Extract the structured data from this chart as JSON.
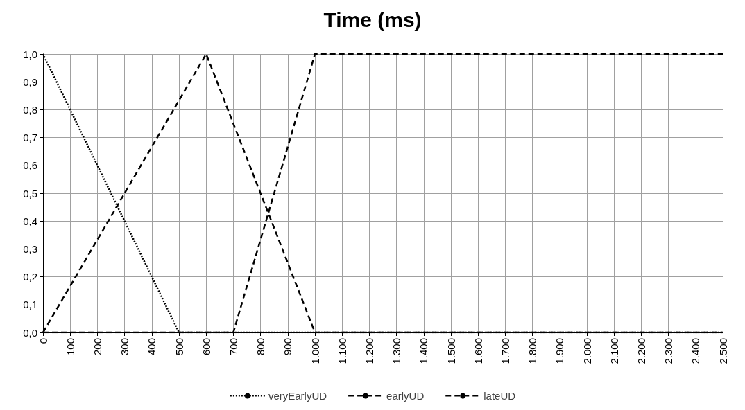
{
  "chart_data": {
    "type": "line",
    "title": "Time (ms)",
    "series": [
      {
        "name": "veryEarlyUD",
        "color": "#000000",
        "line_style": "dotted",
        "x": [
          0,
          500,
          2500
        ],
        "values": [
          1,
          0,
          0
        ]
      },
      {
        "name": "earlyUD",
        "color": "#000000",
        "line_style": "dashed",
        "x": [
          0,
          600,
          1000,
          2500
        ],
        "values": [
          0,
          1,
          0,
          0
        ]
      },
      {
        "name": "lateUD",
        "color": "#000000",
        "line_style": "dashed",
        "x": [
          0,
          700,
          1000,
          2500
        ],
        "values": [
          0,
          0,
          1,
          1
        ]
      }
    ],
    "xlim": [
      0,
      2500
    ],
    "xticks": [
      0,
      100,
      200,
      300,
      400,
      500,
      600,
      700,
      800,
      900,
      {
        "value": 1000,
        "label": "1.000"
      },
      {
        "value": 1100,
        "label": "1.100"
      },
      {
        "value": 1200,
        "label": "1.200"
      },
      {
        "value": 1300,
        "label": "1.300"
      },
      {
        "value": 1400,
        "label": "1.400"
      },
      {
        "value": 1500,
        "label": "1.500"
      },
      {
        "value": 1600,
        "label": "1.600"
      },
      {
        "value": 1700,
        "label": "1.700"
      },
      {
        "value": 1800,
        "label": "1.800"
      },
      {
        "value": 1900,
        "label": "1.900"
      },
      {
        "value": 2000,
        "label": "2.000"
      },
      {
        "value": 2100,
        "label": "2.100"
      },
      {
        "value": 2200,
        "label": "2.200"
      },
      {
        "value": 2300,
        "label": "2.300"
      },
      {
        "value": 2400,
        "label": "2.400"
      },
      {
        "value": 2500,
        "label": "2.500"
      }
    ],
    "ylim": [
      0,
      1
    ],
    "yticks": [
      {
        "value": 0,
        "label": "0,0"
      },
      {
        "value": 0.1,
        "label": "0,1"
      },
      {
        "value": 0.2,
        "label": "0,2"
      },
      {
        "value": 0.3,
        "label": "0,3"
      },
      {
        "value": 0.4,
        "label": "0,4"
      },
      {
        "value": 0.5,
        "label": "0,5"
      },
      {
        "value": 0.6,
        "label": "0,6"
      },
      {
        "value": 0.7,
        "label": "0,7"
      },
      {
        "value": 0.8,
        "label": "0,8"
      },
      {
        "value": 0.9,
        "label": "0,9"
      },
      {
        "value": 1,
        "label": "1,0"
      }
    ],
    "grid": true,
    "legend": "bottom",
    "marker": "none"
  }
}
